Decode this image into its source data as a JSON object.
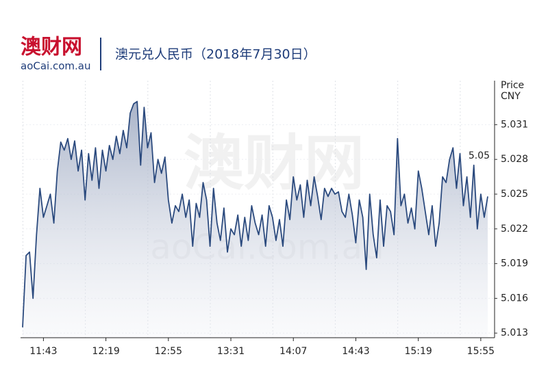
{
  "logo": {
    "name": "澳财网",
    "site": "aoCai.com.au"
  },
  "chart_data": {
    "type": "line",
    "title": "澳元兑人民币（2018年7月30日）",
    "y_axis_label": "Price\nCNY",
    "annotation": "5.05",
    "color": "#2b4a7e",
    "grid": true,
    "ylim": [
      5.0126,
      5.0348
    ],
    "yticks": [
      5.013,
      5.016,
      5.019,
      5.022,
      5.025,
      5.028,
      5.031
    ],
    "categories": [
      null,
      null,
      null,
      null,
      null,
      null,
      "11:43",
      null,
      null,
      null,
      null,
      null,
      null,
      null,
      null,
      null,
      null,
      null,
      null,
      null,
      null,
      null,
      null,
      null,
      "12:19",
      null,
      null,
      null,
      null,
      null,
      null,
      null,
      null,
      null,
      null,
      null,
      null,
      null,
      null,
      null,
      null,
      null,
      "12:55",
      null,
      null,
      null,
      null,
      null,
      null,
      null,
      null,
      null,
      null,
      null,
      null,
      null,
      null,
      null,
      null,
      null,
      "13:31",
      null,
      null,
      null,
      null,
      null,
      null,
      null,
      null,
      null,
      null,
      null,
      null,
      null,
      null,
      null,
      null,
      null,
      "14:07",
      null,
      null,
      null,
      null,
      null,
      null,
      null,
      null,
      null,
      null,
      null,
      null,
      null,
      null,
      null,
      null,
      null,
      "14:43",
      null,
      null,
      null,
      null,
      null,
      null,
      null,
      null,
      null,
      null,
      null,
      null,
      null,
      null,
      null,
      null,
      null,
      "15:19",
      null,
      null,
      null,
      null,
      null,
      null,
      null,
      null,
      null,
      null,
      null,
      null,
      null,
      null,
      null,
      null,
      null,
      "15:55",
      null,
      null
    ],
    "values": [
      5.0135,
      5.0197,
      5.02,
      5.016,
      5.0215,
      5.0255,
      5.023,
      5.024,
      5.025,
      5.0225,
      5.027,
      5.0295,
      5.0288,
      5.0298,
      5.028,
      5.0296,
      5.027,
      5.0288,
      5.0245,
      5.0285,
      5.0262,
      5.029,
      5.0255,
      5.0288,
      5.027,
      5.0292,
      5.028,
      5.03,
      5.0285,
      5.0305,
      5.029,
      5.032,
      5.0328,
      5.033,
      5.0275,
      5.0325,
      5.029,
      5.0303,
      5.026,
      5.028,
      5.0268,
      5.0282,
      5.0245,
      5.0225,
      5.024,
      5.0235,
      5.025,
      5.023,
      5.0245,
      5.0205,
      5.0242,
      5.023,
      5.026,
      5.0245,
      5.0205,
      5.0255,
      5.0225,
      5.021,
      5.0238,
      5.02,
      5.022,
      5.0215,
      5.0232,
      5.0205,
      5.023,
      5.021,
      5.024,
      5.0225,
      5.0215,
      5.0232,
      5.0205,
      5.024,
      5.023,
      5.021,
      5.0228,
      5.0205,
      5.0245,
      5.0228,
      5.0265,
      5.0245,
      5.0258,
      5.023,
      5.0262,
      5.024,
      5.0265,
      5.0248,
      5.0228,
      5.0255,
      5.0248,
      5.0255,
      5.025,
      5.0252,
      5.0235,
      5.023,
      5.025,
      5.0232,
      5.0208,
      5.0245,
      5.023,
      5.0185,
      5.025,
      5.0215,
      5.0195,
      5.0245,
      5.0205,
      5.024,
      5.0235,
      5.0215,
      5.0298,
      5.024,
      5.025,
      5.0225,
      5.0238,
      5.022,
      5.027,
      5.0255,
      5.0235,
      5.0215,
      5.024,
      5.0205,
      5.0225,
      5.0265,
      5.026,
      5.028,
      5.029,
      5.0255,
      5.0285,
      5.024,
      5.0265,
      5.023,
      5.0275,
      5.022,
      5.025,
      5.023,
      5.0248
    ]
  }
}
